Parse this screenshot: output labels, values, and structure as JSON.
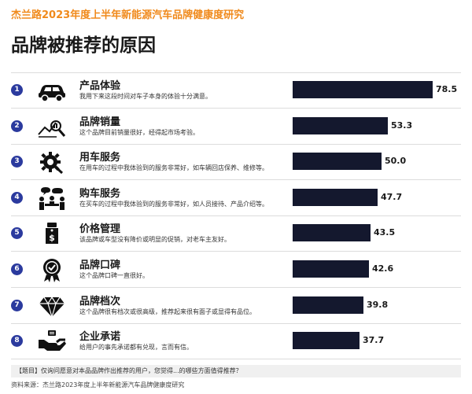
{
  "header": {
    "subtitle": "杰兰路2023年度上半年新能源汽车品牌健康度研究",
    "title": "品牌被推荐的原因"
  },
  "rows": [
    {
      "rank": "1",
      "name": "产品体验",
      "desc": "我用下来这段时间对车子本身的体验十分满意。",
      "value": "78.5",
      "icon": "car-icon"
    },
    {
      "rank": "2",
      "name": "品牌销量",
      "desc": "这个品牌目前销量很好，经得起市场考验。",
      "value": "53.3",
      "icon": "sales-chart-icon"
    },
    {
      "rank": "3",
      "name": "用车服务",
      "desc": "在用车的过程中我体验到的服务非常好，如车辆回店保养、维修等。",
      "value": "50.0",
      "icon": "gear-wrench-icon"
    },
    {
      "rank": "4",
      "name": "购车服务",
      "desc": "在买车的过程中我体验到的服务非常好，如人员接待、产品介绍等。",
      "value": "47.7",
      "icon": "meeting-people-icon"
    },
    {
      "rank": "5",
      "name": "价格管理",
      "desc": "该品牌或车型没有降价或明显的促销，对老车主友好。",
      "value": "43.5",
      "icon": "price-tag-icon"
    },
    {
      "rank": "6",
      "name": "品牌口碑",
      "desc": "这个品牌口碑一直很好。",
      "value": "42.6",
      "icon": "badge-check-icon"
    },
    {
      "rank": "7",
      "name": "品牌档次",
      "desc": "这个品牌很有档次或很高级，推荐起来很有面子或显得有品位。",
      "value": "39.8",
      "icon": "diamond-icon"
    },
    {
      "rank": "8",
      "name": "企业承诺",
      "desc": "给用户的事先承诺都有兑现，言而有信。",
      "value": "37.7",
      "icon": "handshake-icon"
    }
  ],
  "footer": {
    "question": "【题目】仅询问愿意对本品品牌作出推荐的用户，您觉得...的哪些方面值得推荐？",
    "source": "资料来源：杰兰路2023年度上半年新能源汽车品牌健康度研究"
  },
  "chart_data": {
    "type": "bar",
    "orientation": "horizontal",
    "categories": [
      "产品体验",
      "品牌销量",
      "用车服务",
      "购车服务",
      "价格管理",
      "品牌口碑",
      "品牌档次",
      "企业承诺"
    ],
    "values": [
      78.5,
      53.3,
      50.0,
      47.7,
      43.5,
      42.6,
      39.8,
      37.7
    ],
    "title": "品牌被推荐的原因",
    "subtitle": "杰兰路2023年度上半年新能源汽车品牌健康度研究",
    "bar_color": "#14182e",
    "rank_color": "#2b3a9e",
    "accent_color": "#f08a1c"
  }
}
